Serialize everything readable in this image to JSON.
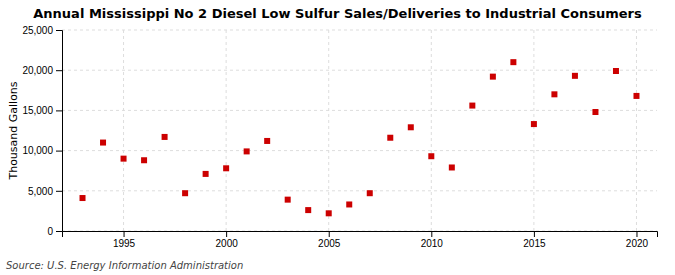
{
  "chart_data": {
    "type": "scatter",
    "title": "Annual Mississippi No 2 Diesel Low Sulfur Sales/Deliveries to Industrial Consumers",
    "y_label": "Thousand Gallons",
    "annotations": [
      "Source: U.S. Energy Information Administration"
    ],
    "x": [
      1993,
      1994,
      1995,
      1996,
      1997,
      1998,
      1999,
      2000,
      2001,
      2002,
      2003,
      2004,
      2005,
      2006,
      2007,
      2008,
      2009,
      2010,
      2011,
      2012,
      2013,
      2014,
      2015,
      2016,
      2017,
      2018,
      2019,
      2020
    ],
    "values": [
      4100,
      11000,
      9000,
      8800,
      11700,
      4700,
      7100,
      7800,
      9900,
      11200,
      3900,
      2600,
      2200,
      3300,
      4700,
      11600,
      12900,
      9300,
      7900,
      15600,
      19200,
      21000,
      13300,
      17000,
      19300,
      14800,
      19900,
      16800
    ],
    "color": "#cc0000",
    "marker": "square",
    "xlim": [
      1992,
      2021
    ],
    "xticks": [
      1995,
      2000,
      2005,
      2010,
      2015,
      2020
    ],
    "ylim": [
      0,
      25000
    ],
    "yticks": [
      0,
      {
        "value": 5000,
        "label": "5,000"
      },
      {
        "value": 10000,
        "label": "10,000"
      },
      {
        "value": 15000,
        "label": "15,000"
      },
      {
        "value": 20000,
        "label": "20,000"
      },
      {
        "value": 25000,
        "label": "25,000"
      }
    ],
    "grid": true
  }
}
